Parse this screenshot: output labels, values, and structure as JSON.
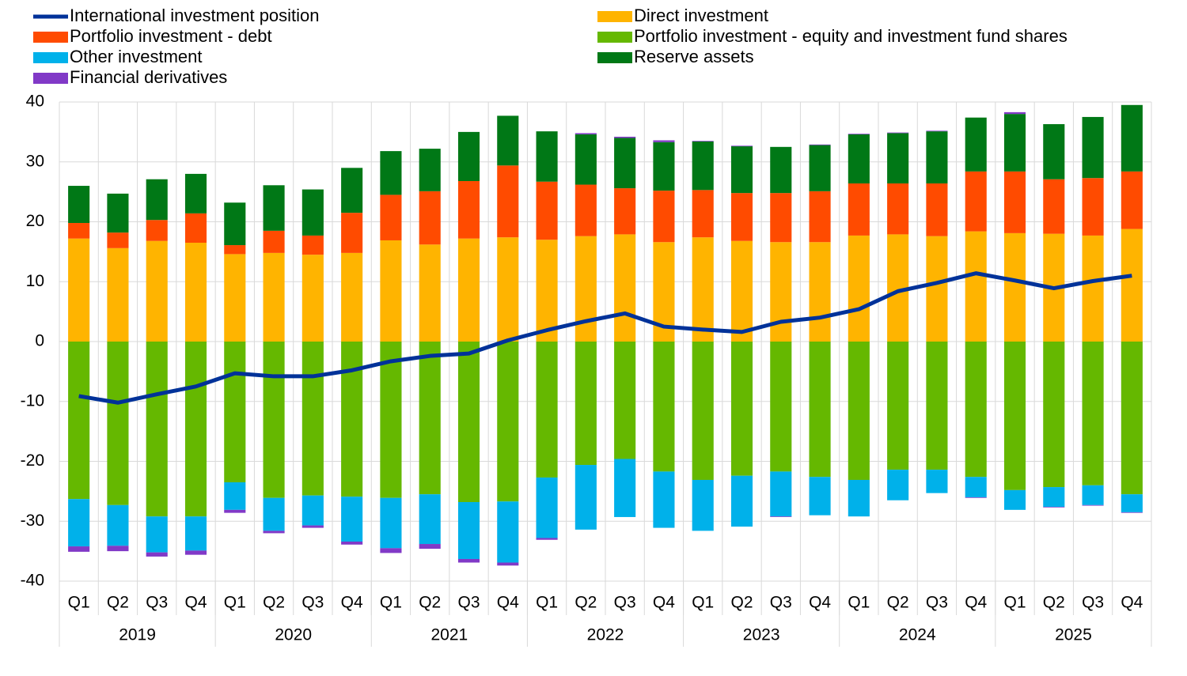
{
  "chart_data": {
    "type": "bar",
    "categories": [
      "Q1",
      "Q2",
      "Q3",
      "Q4",
      "Q1",
      "Q2",
      "Q3",
      "Q4",
      "Q1",
      "Q2",
      "Q3",
      "Q4",
      "Q1",
      "Q2",
      "Q3",
      "Q4",
      "Q1",
      "Q2",
      "Q3",
      "Q4",
      "Q1",
      "Q2",
      "Q3",
      "Q4",
      "Q1",
      "Q2",
      "Q3",
      "Q4"
    ],
    "years": [
      "2019",
      "2020",
      "2021",
      "2022",
      "2023",
      "2024",
      "2025"
    ],
    "ylim": [
      -40,
      40
    ],
    "yticks": [
      -40,
      -30,
      -20,
      -10,
      0,
      10,
      20,
      30,
      40
    ],
    "grid": true,
    "series": [
      {
        "name": "International investment position",
        "type": "line",
        "color": "#003299",
        "values": [
          -9.1,
          -10.2,
          -8.8,
          -7.5,
          -5.3,
          -5.8,
          -5.8,
          -4.8,
          -3.3,
          -2.4,
          -2.0,
          0.2,
          1.9,
          3.4,
          4.7,
          2.5,
          2.0,
          1.6,
          3.3,
          4.0,
          5.4,
          8.4,
          9.8,
          11.4,
          10.2,
          8.9,
          10.1,
          11.0
        ]
      },
      {
        "name": "Direct investment",
        "color": "#ffb400",
        "values": [
          17.2,
          15.6,
          16.8,
          16.5,
          14.6,
          14.8,
          14.5,
          14.8,
          16.9,
          16.2,
          17.2,
          17.4,
          17.0,
          17.6,
          17.9,
          16.6,
          17.4,
          16.8,
          16.6,
          16.6,
          17.7,
          17.9,
          17.6,
          18.4,
          18.1,
          18.0,
          17.7,
          18.8
        ]
      },
      {
        "name": "Portfolio investment - debt",
        "color": "#ff4b00",
        "values": [
          2.6,
          2.6,
          3.5,
          4.9,
          1.5,
          3.7,
          3.2,
          6.7,
          7.6,
          8.9,
          9.6,
          12.0,
          9.7,
          8.6,
          7.7,
          8.6,
          7.9,
          8.0,
          8.2,
          8.5,
          8.7,
          8.5,
          8.8,
          10.0,
          10.3,
          9.1,
          9.6,
          9.6
        ]
      },
      {
        "name": "Portfolio investment - equity and investment fund shares",
        "color": "#65b800",
        "values": [
          -26.3,
          -27.3,
          -29.2,
          -29.2,
          -23.5,
          -26.1,
          -25.7,
          -25.9,
          -26.1,
          -25.5,
          -26.8,
          -26.7,
          -22.7,
          -20.6,
          -19.6,
          -21.7,
          -23.1,
          -22.4,
          -21.7,
          -22.6,
          -23.1,
          -21.4,
          -21.4,
          -22.6,
          -24.8,
          -24.3,
          -24.0,
          -25.5
        ]
      },
      {
        "name": "Other investment",
        "color": "#00b1ea",
        "values": [
          -7.9,
          -6.8,
          -6.0,
          -5.7,
          -4.6,
          -5.5,
          -5.0,
          -7.5,
          -8.4,
          -8.3,
          -9.5,
          -10.2,
          -10.1,
          -10.8,
          -9.7,
          -9.4,
          -8.5,
          -8.5,
          -7.5,
          -6.4,
          -6.1,
          -5.1,
          -3.9,
          -3.4,
          -3.3,
          -3.3,
          -3.3,
          -3.0
        ]
      },
      {
        "name": "Reserve assets",
        "color": "#007816",
        "values": [
          6.2,
          6.5,
          6.8,
          6.6,
          7.1,
          7.6,
          7.7,
          7.5,
          7.3,
          7.1,
          8.2,
          8.3,
          8.4,
          8.4,
          8.4,
          8.1,
          8.1,
          7.8,
          7.7,
          7.7,
          8.2,
          8.4,
          8.7,
          9.0,
          9.6,
          9.2,
          10.2,
          11.1
        ]
      },
      {
        "name": "Financial derivatives",
        "color": "#8139c7",
        "values": [
          -0.9,
          -0.9,
          -0.7,
          -0.7,
          -0.5,
          -0.4,
          -0.4,
          -0.5,
          -0.8,
          -0.8,
          -0.6,
          -0.5,
          -0.3,
          0.2,
          0.2,
          0.3,
          0.1,
          0.1,
          -0.1,
          0.1,
          0.1,
          0.1,
          0.1,
          -0.1,
          0.3,
          -0.1,
          -0.1,
          -0.1
        ]
      }
    ]
  }
}
